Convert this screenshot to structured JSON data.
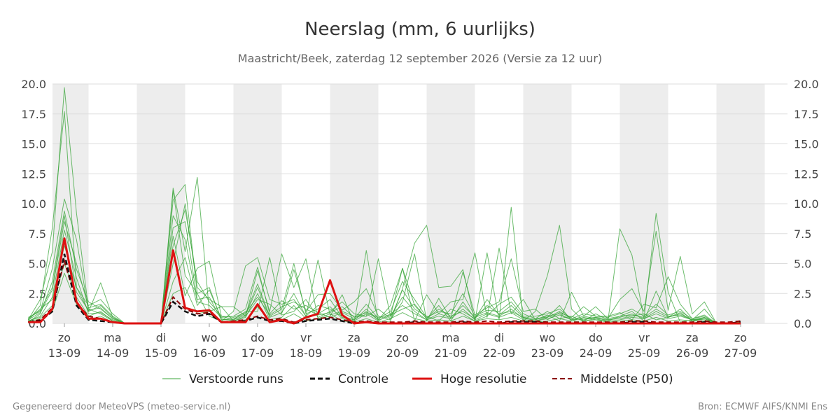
{
  "chart_data": {
    "type": "line",
    "title": "Neerslag (mm, 6 uurlijks)",
    "subtitle": "Maastricht/Beek, zaterdag 12 september 2026 (Versie za 12 uur)",
    "ylim": [
      0,
      20
    ],
    "y_ticks": [
      "0.0",
      "2.5",
      "5.0",
      "7.5",
      "10.0",
      "12.5",
      "15.0",
      "17.5",
      "20.0"
    ],
    "x_ticks": [
      {
        "day": "zo",
        "date": "13-09"
      },
      {
        "day": "ma",
        "date": "14-09"
      },
      {
        "day": "di",
        "date": "15-09"
      },
      {
        "day": "wo",
        "date": "16-09"
      },
      {
        "day": "do",
        "date": "17-09"
      },
      {
        "day": "vr",
        "date": "18-09"
      },
      {
        "day": "za",
        "date": "19-09"
      },
      {
        "day": "zo",
        "date": "20-09"
      },
      {
        "day": "ma",
        "date": "21-09"
      },
      {
        "day": "di",
        "date": "22-09"
      },
      {
        "day": "wo",
        "date": "23-09"
      },
      {
        "day": "do",
        "date": "24-09"
      },
      {
        "day": "vr",
        "date": "25-09"
      },
      {
        "day": "za",
        "date": "26-09"
      },
      {
        "day": "zo",
        "date": "27-09"
      }
    ],
    "x_unit": "dagen vanaf zo 13-09 00 uur (stap 6 uur)",
    "grid": true,
    "legend_position": "bottom",
    "series": [
      {
        "name": "Hoge resolutie",
        "color": "#dd1111",
        "style": "solid",
        "x": [
          -0.25,
          0,
          0.25,
          0.5,
          0.75,
          1,
          1.25,
          1.5,
          1.75,
          2,
          2.25,
          2.5,
          2.75,
          3,
          3.25,
          3.5,
          3.75,
          4,
          4.25,
          4.5,
          4.75,
          5,
          5.25,
          5.5,
          5.75,
          6,
          6.25,
          6.5,
          6.75,
          7,
          7.25,
          7.5,
          7.75,
          8,
          8.25,
          8.5,
          8.75,
          9,
          9.25,
          9.5,
          9.75,
          10,
          10.25,
          10.5,
          10.75,
          11,
          11.25,
          11.5,
          11.75,
          12,
          12.25,
          12.5,
          12.75,
          13,
          13.25,
          13.5,
          13.75,
          14,
          14.25,
          14.5
        ],
        "y": [
          0.1,
          0.1,
          1.2,
          7.1,
          1.8,
          0.4,
          0.4,
          0.1,
          0,
          0,
          0,
          0,
          6.1,
          1.3,
          1.0,
          1.1,
          0.1,
          0.1,
          0.1,
          1.6,
          0.1,
          0.3,
          0,
          0.5,
          0.8,
          3.6,
          0.7,
          0,
          0.1,
          0,
          0,
          0,
          0,
          0,
          0,
          0,
          0,
          0,
          0,
          0,
          0,
          0,
          0,
          0,
          0,
          0,
          0,
          0,
          0,
          0,
          0,
          0,
          0,
          0,
          0,
          0,
          0,
          0,
          0,
          0
        ]
      },
      {
        "name": "Controle",
        "color": "#111111",
        "style": "dash",
        "x": [
          -0.25,
          0,
          0.25,
          0.5,
          0.75,
          1,
          1.25,
          1.5,
          1.75,
          2,
          2.25,
          2.5,
          2.75,
          3,
          3.25,
          3.5,
          3.75,
          4,
          4.25,
          4.5,
          4.75,
          5,
          5.25,
          5.5,
          5.75,
          6,
          6.25,
          6.5,
          6.75,
          7,
          7.25,
          7.5,
          7.75,
          8,
          8.25,
          8.5,
          8.75,
          9,
          9.25,
          9.5,
          9.75,
          10,
          10.25,
          10.5,
          10.75,
          11,
          11.25,
          11.5,
          11.75,
          12,
          12.25,
          12.5,
          12.75,
          13,
          13.25,
          13.5,
          13.75,
          14,
          14.25,
          14.5
        ],
        "y": [
          0.1,
          0.2,
          1.0,
          5.8,
          1.5,
          0.3,
          0.2,
          0.1,
          0,
          0,
          0,
          0,
          1.8,
          1.0,
          0.6,
          0.8,
          0.1,
          0.1,
          0.2,
          0.5,
          0.2,
          0.2,
          0,
          0.2,
          0.3,
          0.4,
          0.2,
          0,
          0.1,
          0,
          0,
          0,
          0.1,
          0,
          0,
          0,
          0.1,
          0,
          0,
          0,
          0.1,
          0.1,
          0.1,
          0,
          0,
          0,
          0,
          0,
          0,
          0,
          0.1,
          0.1,
          0,
          0,
          0,
          0,
          0.1,
          0,
          0,
          0.1
        ]
      },
      {
        "name": "Middelste (P50)",
        "color": "#8b0000",
        "style": "dash",
        "x": [
          -0.25,
          0,
          0.25,
          0.5,
          0.75,
          1,
          1.25,
          1.5,
          1.75,
          2,
          2.25,
          2.5,
          2.75,
          3,
          3.25,
          3.5,
          3.75,
          4,
          4.25,
          4.5,
          4.75,
          5,
          5.25,
          5.5,
          5.75,
          6,
          6.25,
          6.5,
          6.75,
          7,
          7.25,
          7.5,
          7.75,
          8,
          8.25,
          8.5,
          8.75,
          9,
          9.25,
          9.5,
          9.75,
          10,
          10.25,
          10.5,
          10.75,
          11,
          11.25,
          11.5,
          11.75,
          12,
          12.25,
          12.5,
          12.75,
          13,
          13.25,
          13.5,
          13.75,
          14,
          14.25,
          14.5
        ],
        "y": [
          0.1,
          0.3,
          1.3,
          5.2,
          1.7,
          0.6,
          0.4,
          0.1,
          0,
          0,
          0,
          0,
          2.2,
          1.2,
          0.8,
          0.9,
          0.1,
          0.2,
          0.3,
          0.6,
          0.3,
          0.4,
          0.1,
          0.3,
          0.4,
          0.5,
          0.3,
          0.1,
          0.2,
          0.1,
          0.1,
          0.1,
          0.2,
          0.1,
          0.1,
          0.1,
          0.2,
          0.1,
          0.2,
          0.1,
          0.2,
          0.2,
          0.2,
          0.1,
          0.1,
          0.1,
          0.1,
          0.1,
          0.1,
          0.1,
          0.2,
          0.2,
          0.1,
          0.1,
          0.1,
          0.1,
          0.2,
          0.1,
          0.1,
          0.2
        ]
      },
      {
        "name": "Verstoorde runs",
        "color": "#3aa63a",
        "style": "thin",
        "members": 10,
        "x": [
          -0.25,
          0,
          0.25,
          0.5,
          0.75,
          1,
          1.25,
          1.5,
          1.75,
          2,
          2.25,
          2.5,
          2.75,
          3,
          3.25,
          3.5,
          3.75,
          4,
          4.25,
          4.5,
          4.75,
          5,
          5.25,
          5.5,
          5.75,
          6,
          6.25,
          6.5,
          6.75,
          7,
          7.25,
          7.5,
          7.75,
          8,
          8.25,
          8.5,
          8.75,
          9,
          9.25,
          9.5,
          9.75,
          10,
          10.25,
          10.5,
          10.75,
          11,
          11.25,
          11.5,
          11.75,
          12,
          12.25,
          12.5,
          12.75,
          13,
          13.25,
          13.5,
          13.75,
          14,
          14.25,
          14.5
        ],
        "members_y": [
          [
            0.3,
            2.0,
            6.0,
            19.7,
            9.2,
            1.2,
            0.8,
            0.2,
            0,
            0,
            0,
            0,
            11.3,
            6.0,
            12.2,
            1.0,
            1.4,
            0.2,
            0.6,
            4.4,
            1.0,
            5.8,
            3.0,
            5.4,
            0.4,
            0.6,
            2.4,
            0,
            6.1,
            0,
            0.2,
            2.9,
            6.7,
            8.2,
            3.0,
            3.1,
            4.5,
            0.2,
            5.9,
            0.3,
            9.7,
            0.2,
            1.0,
            4.0,
            8.2,
            1.2,
            0.2,
            0.4,
            0.1,
            7.9,
            5.7,
            0.4,
            9.2,
            2.6,
            0.1,
            0.3,
            1.2,
            0,
            0,
            0.1
          ],
          [
            0.2,
            1.5,
            8.0,
            17.7,
            3.0,
            1.0,
            1.5,
            0.5,
            0,
            0,
            0,
            0,
            10.3,
            11.6,
            2.5,
            0.6,
            0.2,
            1.0,
            4.8,
            5.5,
            2.0,
            1.6,
            2.0,
            0.6,
            5.3,
            0.7,
            1.0,
            0.6,
            0.6,
            5.4,
            0.6,
            4.6,
            0.2,
            2.4,
            0.8,
            1.8,
            2.0,
            5.9,
            0.5,
            6.3,
            0.8,
            2.0,
            0.3,
            0.7,
            0.2,
            2.6,
            0.6,
            1.4,
            0.4,
            2.0,
            2.9,
            1.0,
            7.7,
            1.1,
            5.6,
            0.8,
            1.8,
            0,
            0,
            0.1
          ],
          [
            0.5,
            1.0,
            4.6,
            10.4,
            7.0,
            1.0,
            3.4,
            0.5,
            0,
            0,
            0,
            0,
            7.3,
            2.3,
            4.6,
            5.2,
            0.6,
            0.3,
            1.0,
            1.0,
            5.5,
            0.8,
            4.5,
            1.0,
            2.4,
            2.5,
            1.1,
            1.8,
            2.9,
            0.6,
            0.3,
            1.8,
            5.8,
            0.2,
            2.1,
            0.4,
            4.3,
            0.7,
            1.3,
            1.8,
            5.4,
            1.0,
            1.2,
            0.3,
            0.9,
            0.5,
            1.4,
            0.6,
            0.6,
            0.9,
            0.3,
            1.6,
            1.3,
            3.9,
            1.6,
            0.4,
            0.6,
            0,
            0,
            0.1
          ],
          [
            0.1,
            0.8,
            3.5,
            9.4,
            4.5,
            1.8,
            1.2,
            0.4,
            0,
            0,
            0,
            0,
            11.1,
            4.0,
            2.5,
            3.0,
            0.3,
            0.4,
            0.8,
            3.3,
            0.6,
            1.2,
            5.0,
            0.8,
            1.2,
            2.0,
            0.5,
            0.3,
            1.0,
            0.3,
            1.5,
            4.6,
            1.5,
            0.4,
            1.5,
            0.2,
            1.8,
            0.4,
            2.0,
            0.7,
            1.5,
            0.5,
            0.2,
            0.5,
            1.5,
            0.2,
            0.5,
            0.3,
            0.2,
            0.6,
            1.0,
            0.2,
            2.7,
            0.5,
            1.2,
            0.2,
            0.4,
            0,
            0,
            0.1
          ],
          [
            0.4,
            1.2,
            2.0,
            6.5,
            3.0,
            1.5,
            2.0,
            0.8,
            0,
            0,
            0,
            0,
            5.0,
            10.0,
            3.0,
            2.0,
            1.4,
            1.4,
            0.6,
            2.0,
            1.6,
            0.7,
            1.0,
            2.0,
            0.5,
            1.0,
            1.8,
            0.8,
            0.6,
            1.2,
            0.4,
            2.8,
            1.2,
            0.6,
            0.2,
            1.2,
            0.8,
            0.2,
            0.6,
            1.6,
            2.2,
            0.8,
            0.4,
            1.0,
            0.4,
            0.6,
            0.2,
            0.8,
            0.3,
            0.4,
            0.6,
            0.8,
            0.3,
            0.5,
            0.9,
            0.2,
            0.5,
            0,
            0,
            0.1
          ],
          [
            0.2,
            0.5,
            1.5,
            5.0,
            2.2,
            0.6,
            1.0,
            0.2,
            0,
            0,
            0,
            0,
            3.5,
            5.5,
            1.5,
            2.8,
            0.4,
            0.2,
            0.5,
            2.5,
            0.3,
            0.5,
            1.5,
            0.4,
            0.8,
            1.4,
            0.4,
            0.2,
            0.8,
            0.2,
            0.8,
            1.5,
            0.8,
            0.3,
            0.6,
            0.4,
            1.2,
            0.3,
            0.8,
            0.5,
            0.9,
            0.3,
            0.2,
            0.4,
            0.7,
            0.3,
            0.4,
            0.5,
            0.2,
            0.3,
            0.5,
            0.4,
            0.8,
            0.4,
            0.6,
            0.3,
            0.3,
            0,
            0,
            0.1
          ],
          [
            0.3,
            0.9,
            2.8,
            8.5,
            5.0,
            1.3,
            1.6,
            0.6,
            0,
            0,
            0,
            0,
            9.0,
            7.0,
            1.8,
            1.5,
            0.5,
            0.6,
            1.2,
            4.7,
            0.8,
            1.9,
            1.2,
            1.5,
            0.9,
            0.5,
            0.9,
            0.4,
            1.6,
            0.4,
            1.0,
            3.5,
            2.0,
            0.5,
            1.0,
            0.8,
            2.5,
            0.6,
            1.1,
            1.0,
            1.8,
            0.6,
            0.6,
            0.8,
            1.2,
            0.4,
            0.8,
            0.6,
            0.5,
            0.8,
            1.2,
            0.6,
            1.6,
            0.7,
            1.0,
            0.4,
            0.7,
            0,
            0,
            0.1
          ],
          [
            0.1,
            0.4,
            1.0,
            4.2,
            1.6,
            0.3,
            0.6,
            0.1,
            0,
            0,
            0,
            0,
            2.5,
            3.0,
            0.8,
            1.0,
            0.2,
            0.1,
            0.3,
            1.4,
            0.2,
            0.3,
            0.8,
            0.2,
            0.4,
            0.8,
            0.2,
            0.1,
            0.4,
            0.1,
            0.4,
            0.9,
            0.4,
            0.2,
            0.3,
            0.2,
            0.6,
            0.2,
            0.4,
            0.3,
            0.5,
            0.2,
            0.1,
            0.2,
            0.4,
            0.2,
            0.2,
            0.3,
            0.1,
            0.2,
            0.3,
            0.2,
            0.5,
            0.2,
            0.3,
            0.2,
            0.2,
            0,
            0,
            0.1
          ],
          [
            0.2,
            0.6,
            2.2,
            7.8,
            3.8,
            0.8,
            0.9,
            0.3,
            0,
            0,
            0,
            0,
            8.0,
            8.5,
            2.0,
            2.2,
            0.3,
            0.3,
            0.7,
            3.0,
            0.5,
            0.9,
            2.5,
            0.6,
            1.5,
            1.2,
            0.6,
            0.3,
            1.2,
            0.3,
            0.6,
            2.2,
            1.0,
            0.3,
            0.8,
            0.5,
            1.5,
            0.5,
            0.9,
            0.6,
            1.2,
            0.4,
            0.3,
            0.6,
            0.8,
            0.3,
            0.6,
            0.4,
            0.3,
            0.5,
            0.8,
            0.4,
            1.0,
            0.5,
            0.8,
            0.3,
            0.5,
            0,
            0,
            0.1
          ],
          [
            0.4,
            1.1,
            3.0,
            9.0,
            2.6,
            1.1,
            1.3,
            0.4,
            0,
            0,
            0,
            0,
            6.5,
            9.5,
            3.5,
            1.8,
            0.6,
            0.5,
            0.9,
            2.2,
            0.7,
            1.4,
            1.8,
            1.2,
            0.7,
            0.9,
            1.4,
            0.5,
            0.9,
            0.5,
            0.7,
            1.2,
            1.6,
            0.4,
            1.2,
            0.6,
            1.0,
            0.4,
            1.5,
            0.8,
            1.0,
            0.5,
            0.4,
            0.5,
            1.0,
            0.4,
            0.3,
            0.5,
            0.4,
            0.6,
            0.7,
            0.5,
            1.2,
            0.6,
            0.7,
            0.3,
            0.4,
            0,
            0,
            0.1
          ]
        ]
      }
    ]
  },
  "legend": {
    "perturbed": "Verstoorde runs",
    "control": "Controle",
    "hires": "Hoge resolutie",
    "median": "Middelste (P50)"
  },
  "footer": {
    "left": "Gegenereerd door MeteoVPS (meteo-service.nl)",
    "right": "Bron: ECMWF AIFS/KNMI Ens"
  },
  "colors": {
    "band": "#ededed",
    "grid": "#dddddd",
    "ensemble": "#3aa63a",
    "hires": "#dd1111",
    "control": "#111111",
    "median": "#8b0000"
  }
}
